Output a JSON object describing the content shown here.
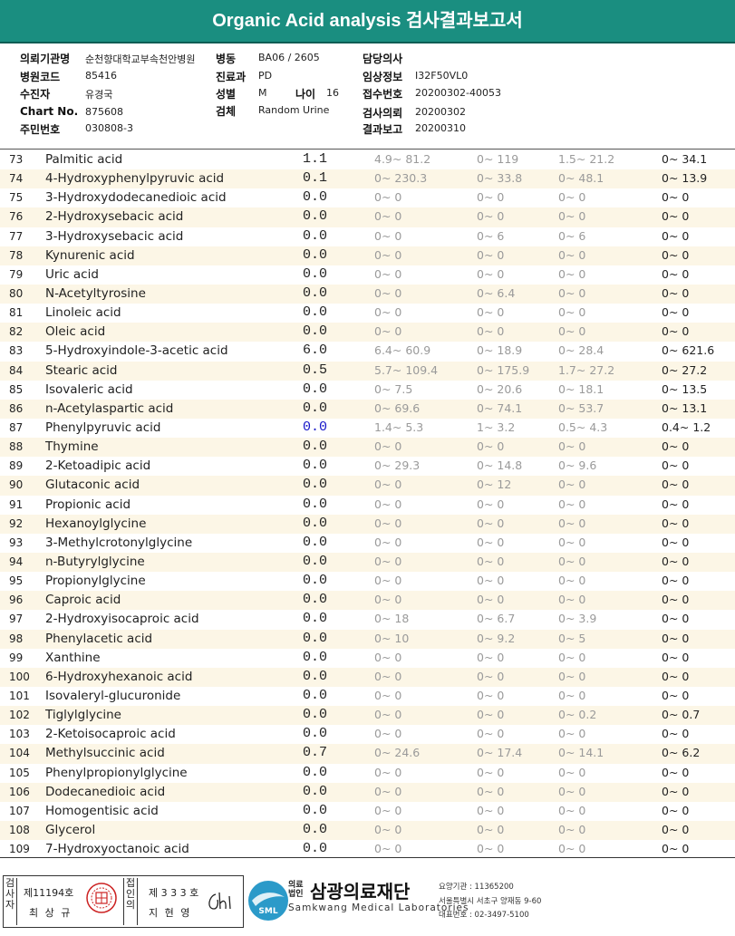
{
  "title": "Organic Acid analysis 검사결과보고서",
  "info": {
    "req_inst_label": "의뢰기관명",
    "req_inst_value": "순천향대학교부속천안병원",
    "ward_label": "병동",
    "ward_value": "BA06 / 2605",
    "doctor_label": "담당의사",
    "hosp_code_label": "병원코드",
    "hosp_code_value": "85416",
    "dept_label": "진료과",
    "dept_value": "PD",
    "clinical_label": "임상정보",
    "clinical_value": "I32F50VL0",
    "patient_label": "수진자",
    "patient_value": "유경국",
    "sex_label": "성별",
    "sex_value": "M",
    "age_label": "나이",
    "age_value": "16",
    "receipt_label": "접수번호",
    "receipt_value": "20200302-40053",
    "chart_label": "Chart No.",
    "chart_value": "875608",
    "specimen_label": "검체",
    "specimen_value": "Random Urine",
    "req_date_label": "검사의뢰",
    "req_date_value": "20200302",
    "id_label": "주민번호",
    "id_value": "030808-3",
    "report_label": "결과보고",
    "report_value": "20200310"
  },
  "rows": [
    {
      "no": "73",
      "name": "Palmitic acid",
      "value": "1.1",
      "r1": "4.9~ 81.2",
      "r2": "0~ 119",
      "r3": "1.5~ 21.2",
      "r4": "0~ 34.1",
      "low": false
    },
    {
      "no": "74",
      "name": "4-Hydroxyphenylpyruvic acid",
      "value": "0.1",
      "r1": "0~ 230.3",
      "r2": "0~ 33.8",
      "r3": "0~ 48.1",
      "r4": "0~ 13.9",
      "low": false
    },
    {
      "no": "75",
      "name": "3-Hydroxydodecanedioic acid",
      "value": "0.0",
      "r1": "0~ 0",
      "r2": "0~ 0",
      "r3": "0~ 0",
      "r4": "0~ 0",
      "low": false
    },
    {
      "no": "76",
      "name": "2-Hydroxysebacic acid",
      "value": "0.0",
      "r1": "0~ 0",
      "r2": "0~ 0",
      "r3": "0~ 0",
      "r4": "0~ 0",
      "low": false
    },
    {
      "no": "77",
      "name": "3-Hydroxysebacic acid",
      "value": "0.0",
      "r1": "0~ 0",
      "r2": "0~ 6",
      "r3": "0~ 6",
      "r4": "0~ 0",
      "low": false
    },
    {
      "no": "78",
      "name": "Kynurenic acid",
      "value": "0.0",
      "r1": "0~ 0",
      "r2": "0~ 0",
      "r3": "0~ 0",
      "r4": "0~ 0",
      "low": false
    },
    {
      "no": "79",
      "name": "Uric acid",
      "value": "0.0",
      "r1": "0~ 0",
      "r2": "0~ 0",
      "r3": "0~ 0",
      "r4": "0~ 0",
      "low": false
    },
    {
      "no": "80",
      "name": "N-Acetyltyrosine",
      "value": "0.0",
      "r1": "0~ 0",
      "r2": "0~ 6.4",
      "r3": "0~ 0",
      "r4": "0~ 0",
      "low": false
    },
    {
      "no": "81",
      "name": "Linoleic acid",
      "value": "0.0",
      "r1": "0~ 0",
      "r2": "0~ 0",
      "r3": "0~ 0",
      "r4": "0~ 0",
      "low": false
    },
    {
      "no": "82",
      "name": "Oleic acid",
      "value": "0.0",
      "r1": "0~ 0",
      "r2": "0~ 0",
      "r3": "0~ 0",
      "r4": "0~ 0",
      "low": false
    },
    {
      "no": "83",
      "name": "5-Hydroxyindole-3-acetic acid",
      "value": "6.0",
      "r1": "6.4~ 60.9",
      "r2": "0~ 18.9",
      "r3": "0~ 28.4",
      "r4": "0~ 621.6",
      "low": false
    },
    {
      "no": "84",
      "name": "Stearic acid",
      "value": "0.5",
      "r1": "5.7~ 109.4",
      "r2": "0~ 175.9",
      "r3": "1.7~ 27.2",
      "r4": "0~ 27.2",
      "low": false
    },
    {
      "no": "85",
      "name": "Isovaleric acid",
      "value": "0.0",
      "r1": "0~ 7.5",
      "r2": "0~ 20.6",
      "r3": "0~ 18.1",
      "r4": "0~ 13.5",
      "low": false
    },
    {
      "no": "86",
      "name": "n-Acetylaspartic acid",
      "value": "0.0",
      "r1": "0~ 69.6",
      "r2": "0~ 74.1",
      "r3": "0~ 53.7",
      "r4": "0~ 13.1",
      "low": false
    },
    {
      "no": "87",
      "name": "Phenylpyruvic acid",
      "value": "0.0",
      "r1": "1.4~ 5.3",
      "r2": "1~ 3.2",
      "r3": "0.5~ 4.3",
      "r4": "0.4~ 1.2",
      "low": true
    },
    {
      "no": "88",
      "name": "Thymine",
      "value": "0.0",
      "r1": "0~ 0",
      "r2": "0~ 0",
      "r3": "0~ 0",
      "r4": "0~ 0",
      "low": false
    },
    {
      "no": "89",
      "name": "2-Ketoadipic acid",
      "value": "0.0",
      "r1": "0~ 29.3",
      "r2": "0~ 14.8",
      "r3": "0~ 9.6",
      "r4": "0~ 0",
      "low": false
    },
    {
      "no": "90",
      "name": "Glutaconic acid",
      "value": "0.0",
      "r1": "0~ 0",
      "r2": "0~ 12",
      "r3": "0~ 0",
      "r4": "0~ 0",
      "low": false
    },
    {
      "no": "91",
      "name": "Propionic acid",
      "value": "0.0",
      "r1": "0~ 0",
      "r2": "0~ 0",
      "r3": "0~ 0",
      "r4": "0~ 0",
      "low": false
    },
    {
      "no": "92",
      "name": "Hexanoylglycine",
      "value": "0.0",
      "r1": "0~ 0",
      "r2": "0~ 0",
      "r3": "0~ 0",
      "r4": "0~ 0",
      "low": false
    },
    {
      "no": "93",
      "name": "3-Methylcrotonylglycine",
      "value": "0.0",
      "r1": "0~ 0",
      "r2": "0~ 0",
      "r3": "0~ 0",
      "r4": "0~ 0",
      "low": false
    },
    {
      "no": "94",
      "name": "n-Butyrylglycine",
      "value": "0.0",
      "r1": "0~ 0",
      "r2": "0~ 0",
      "r3": "0~ 0",
      "r4": "0~ 0",
      "low": false
    },
    {
      "no": "95",
      "name": "Propionylglycine",
      "value": "0.0",
      "r1": "0~ 0",
      "r2": "0~ 0",
      "r3": "0~ 0",
      "r4": "0~ 0",
      "low": false
    },
    {
      "no": "96",
      "name": "Caproic acid",
      "value": "0.0",
      "r1": "0~ 0",
      "r2": "0~ 0",
      "r3": "0~ 0",
      "r4": "0~ 0",
      "low": false
    },
    {
      "no": "97",
      "name": "2-Hydroxyisocaproic acid",
      "value": "0.0",
      "r1": "0~ 18",
      "r2": "0~ 6.7",
      "r3": "0~ 3.9",
      "r4": "0~ 0",
      "low": false
    },
    {
      "no": "98",
      "name": "Phenylacetic acid",
      "value": "0.0",
      "r1": "0~ 10",
      "r2": "0~ 9.2",
      "r3": "0~ 5",
      "r4": "0~ 0",
      "low": false
    },
    {
      "no": "99",
      "name": "Xanthine",
      "value": "0.0",
      "r1": "0~ 0",
      "r2": "0~ 0",
      "r3": "0~ 0",
      "r4": "0~ 0",
      "low": false
    },
    {
      "no": "100",
      "name": "6-Hydroxyhexanoic acid",
      "value": "0.0",
      "r1": "0~ 0",
      "r2": "0~ 0",
      "r3": "0~ 0",
      "r4": "0~ 0",
      "low": false
    },
    {
      "no": "101",
      "name": "Isovaleryl-glucuronide",
      "value": "0.0",
      "r1": "0~ 0",
      "r2": "0~ 0",
      "r3": "0~ 0",
      "r4": "0~ 0",
      "low": false
    },
    {
      "no": "102",
      "name": "Tiglylglycine",
      "value": "0.0",
      "r1": "0~ 0",
      "r2": "0~ 0",
      "r3": "0~ 0.2",
      "r4": "0~ 0.7",
      "low": false
    },
    {
      "no": "103",
      "name": "2-Ketoisocaproic acid",
      "value": "0.0",
      "r1": "0~ 0",
      "r2": "0~ 0",
      "r3": "0~ 0",
      "r4": "0~ 0",
      "low": false
    },
    {
      "no": "104",
      "name": "Methylsuccinic acid",
      "value": "0.7",
      "r1": "0~ 24.6",
      "r2": "0~ 17.4",
      "r3": "0~ 14.1",
      "r4": "0~ 6.2",
      "low": false
    },
    {
      "no": "105",
      "name": "Phenylpropionylglycine",
      "value": "0.0",
      "r1": "0~ 0",
      "r2": "0~ 0",
      "r3": "0~ 0",
      "r4": "0~ 0",
      "low": false
    },
    {
      "no": "106",
      "name": "Dodecanedioic acid",
      "value": "0.0",
      "r1": "0~ 0",
      "r2": "0~ 0",
      "r3": "0~ 0",
      "r4": "0~ 0",
      "low": false
    },
    {
      "no": "107",
      "name": "Homogentisic acid",
      "value": "0.0",
      "r1": "0~ 0",
      "r2": "0~ 0",
      "r3": "0~ 0",
      "r4": "0~ 0",
      "low": false
    },
    {
      "no": "108",
      "name": "Glycerol",
      "value": "0.0",
      "r1": "0~ 0",
      "r2": "0~ 0",
      "r3": "0~ 0",
      "r4": "0~ 0",
      "low": false
    },
    {
      "no": "109",
      "name": "7-Hydroxyoctanoic acid",
      "value": "0.0",
      "r1": "0~ 0",
      "r2": "0~ 0",
      "r3": "0~ 0",
      "r4": "0~ 0",
      "low": false
    }
  ],
  "footer": {
    "tester_label": "검사자",
    "tester_no": "제11194호",
    "tester_name": "최 상 규",
    "approver_label": "접인의",
    "approver_no": "제 3 3 3 호",
    "approver_name": "지 현 영",
    "org_prefix": "의료법인",
    "org_name": "삼광의료재단",
    "org_en": "Samkwang Medical Laboratories",
    "logo_text": "SML",
    "addr1": "요양기관 : 11365200",
    "addr2": "서울특별시 서초구 양재동 9-60",
    "addr3": "대표번호 : 02-3497-5100"
  },
  "colors": {
    "banner": "#1a8e80",
    "low_value": "#1515c8",
    "alt_row": "#fcf6e6"
  }
}
